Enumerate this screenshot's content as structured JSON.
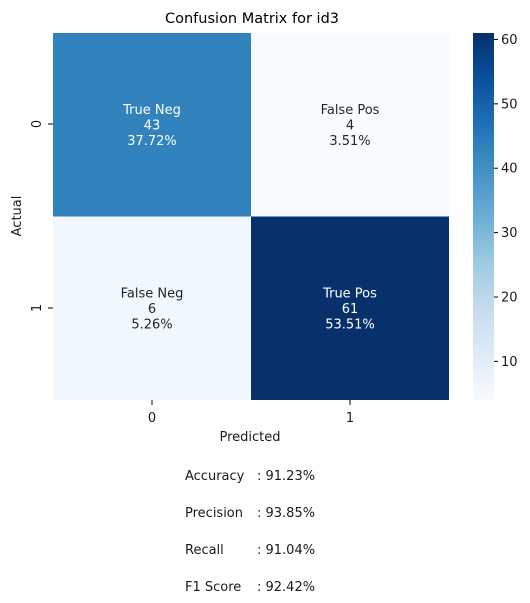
{
  "chart_data": {
    "type": "heatmap",
    "title": "Confusion Matrix for id3",
    "xlabel": "Predicted",
    "ylabel": "Actual",
    "x_categories": [
      "0",
      "1"
    ],
    "y_categories": [
      "0",
      "1"
    ],
    "values": [
      [
        43,
        4
      ],
      [
        6,
        61
      ]
    ],
    "annotations": [
      [
        [
          "True Neg",
          "43",
          "37.72%"
        ],
        [
          "False Pos",
          "4",
          "3.51%"
        ]
      ],
      [
        [
          "False Neg",
          "6",
          "5.26%"
        ],
        [
          "True Pos",
          "61",
          "53.51%"
        ]
      ]
    ],
    "colorscale": "Blues",
    "color_range": [
      4,
      61
    ],
    "colorbar_ticks": [
      "10",
      "20",
      "30",
      "40",
      "50",
      "60"
    ],
    "colorbar_tick_values": [
      10,
      20,
      30,
      40,
      50,
      60
    ]
  },
  "metrics": [
    {
      "label": "Accuracy  ",
      "value": ": 91.23%"
    },
    {
      "label": "Precision ",
      "value": ": 93.85%"
    },
    {
      "label": "Recall    ",
      "value": ": 91.04%"
    },
    {
      "label": "F1 Score ",
      "value": ": 92.42%"
    }
  ]
}
